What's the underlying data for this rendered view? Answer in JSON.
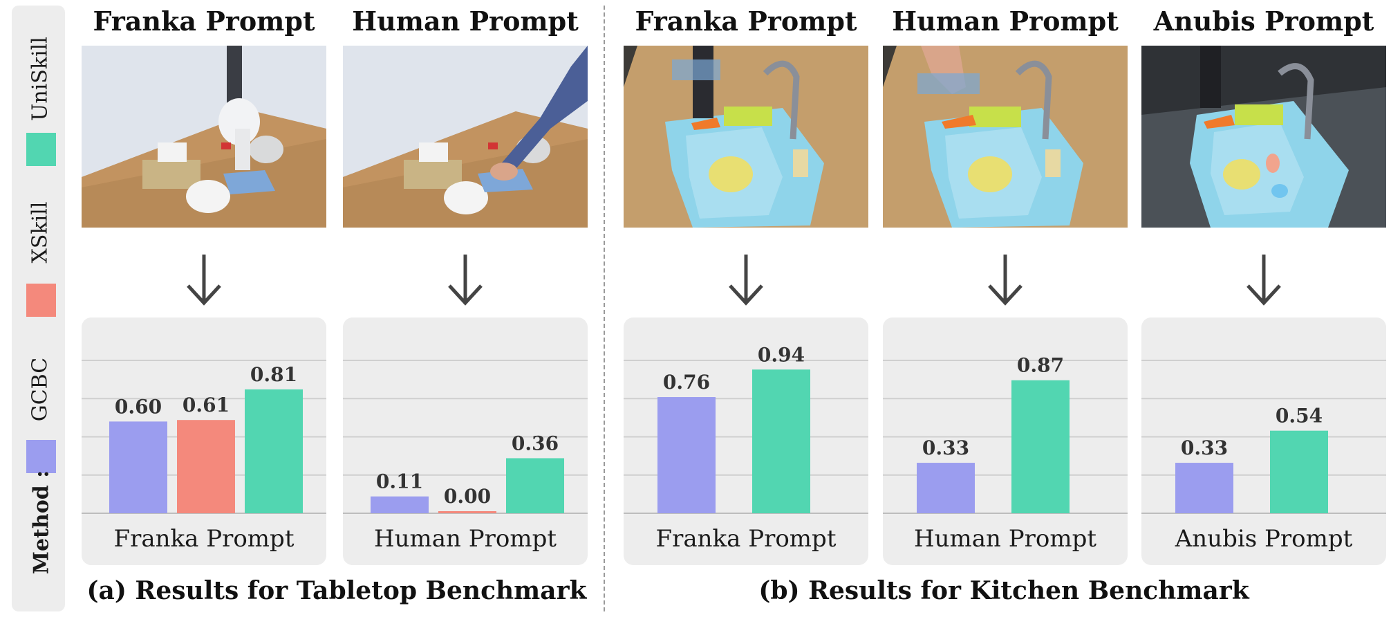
{
  "legend": {
    "title": "Method :",
    "items": [
      {
        "name": "GCBC",
        "color": "#9b9def"
      },
      {
        "name": "XSkill",
        "color": "#f4897c"
      },
      {
        "name": "UniSkill",
        "color": "#52d6b1"
      }
    ]
  },
  "panels": [
    {
      "title": "Franka Prompt",
      "scene": "tabletop-robot"
    },
    {
      "title": "Human Prompt",
      "scene": "tabletop-human"
    },
    {
      "title": "Franka Prompt",
      "scene": "kitchen-robot"
    },
    {
      "title": "Human Prompt",
      "scene": "kitchen-human"
    },
    {
      "title": "Anubis Prompt",
      "scene": "kitchen-anubis"
    }
  ],
  "captions": {
    "tabletop": "(a) Results for Tabletop Benchmark",
    "kitchen": "(b) Results for Kitchen Benchmark"
  },
  "chart_data": [
    {
      "type": "bar",
      "xlabel": "Franka Prompt",
      "categories": [
        "GCBC",
        "XSkill",
        "UniSkill"
      ],
      "values": [
        0.6,
        0.61,
        0.81
      ],
      "ylim": [
        0,
        1
      ],
      "grid": true
    },
    {
      "type": "bar",
      "xlabel": "Human Prompt",
      "categories": [
        "GCBC",
        "XSkill",
        "UniSkill"
      ],
      "values": [
        0.11,
        0.0,
        0.36
      ],
      "ylim": [
        0,
        1
      ],
      "grid": true
    },
    {
      "type": "bar",
      "xlabel": "Franka Prompt",
      "categories": [
        "GCBC",
        "UniSkill"
      ],
      "values": [
        0.76,
        0.94
      ],
      "ylim": [
        0,
        1
      ],
      "grid": true
    },
    {
      "type": "bar",
      "xlabel": "Human Prompt",
      "categories": [
        "GCBC",
        "UniSkill"
      ],
      "values": [
        0.33,
        0.87
      ],
      "ylim": [
        0,
        1
      ],
      "grid": true
    },
    {
      "type": "bar",
      "xlabel": "Anubis Prompt",
      "categories": [
        "GCBC",
        "UniSkill"
      ],
      "values": [
        0.33,
        0.54
      ],
      "ylim": [
        0,
        1
      ],
      "grid": true
    }
  ]
}
